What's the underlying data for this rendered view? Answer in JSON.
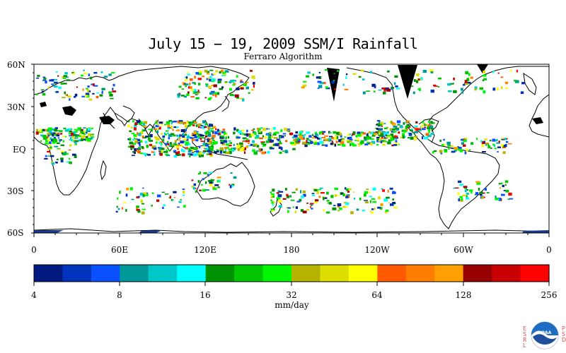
{
  "title": "July 15 − 19, 2009 SSM/I Rainfall",
  "subtitle": "Ferraro Algorithm",
  "lat_labels": [
    "60N",
    "30N",
    "EQ",
    "30S",
    "60S"
  ],
  "lon_labels": [
    "0",
    "60E",
    "120E",
    "180",
    "120W",
    "60W",
    "0"
  ],
  "colorbar": {
    "tick_labels": [
      "4",
      "8",
      "16",
      "32",
      "64",
      "128",
      "256"
    ],
    "units": "mm/day",
    "colors": [
      "#001a80",
      "#0033bb",
      "#0a50ff",
      "#009999",
      "#00c8c8",
      "#00ffff",
      "#009100",
      "#00c600",
      "#00f500",
      "#b3b300",
      "#dddd00",
      "#ffff00",
      "#ff5a00",
      "#ff7d00",
      "#ffa000",
      "#960000",
      "#c80000",
      "#ff0000"
    ]
  },
  "logo": {
    "left_letters": [
      "E",
      "S",
      "R",
      "L"
    ],
    "right_letters": [
      "P",
      "S",
      "D"
    ],
    "badge": "NOAA"
  }
}
